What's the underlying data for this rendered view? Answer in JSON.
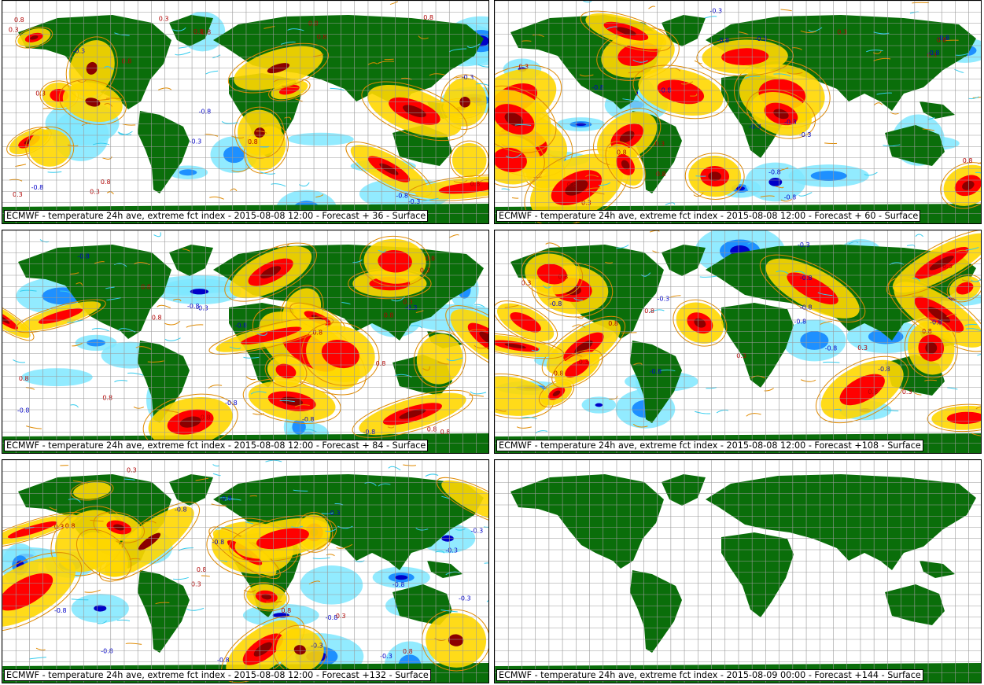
{
  "panels": [
    {
      "caption": "ECMWF - temperature 24h ave, extreme fct index - 2015-08-08 12:00 - Forecast + 36 - Surface",
      "has_field": true
    },
    {
      "caption": "ECMWF - temperature 24h ave, extreme fct index - 2015-08-08 12:00 - Forecast + 60 - Surface",
      "has_field": true
    },
    {
      "caption": "ECMWF - temperature 24h ave, extreme fct index - 2015-08-08 12:00 - Forecast + 84 - Surface",
      "has_field": true
    },
    {
      "caption": "ECMWF - temperature 24h ave, extreme fct index - 2015-08-08 12:00 - Forecast +108 - Surface",
      "has_field": true
    },
    {
      "caption": "ECMWF - temperature 24h ave, extreme fct index - 2015-08-08 12:00 - Forecast +132 - Surface",
      "has_field": true
    },
    {
      "caption": "ECMWF - temperature 24h ave, extreme fct index - 2015-08-09 00:00 - Forecast +144 - Surface",
      "has_field": false
    }
  ],
  "contour_labels": [
    "0.3",
    "0.8",
    "-0.3",
    "-0.8"
  ],
  "colors": {
    "land": "#0a6e0a",
    "grid": "#9a9a9a",
    "warm_weak": "#ffd700",
    "warm_mid": "#ff0000",
    "warm_strong": "#8b0000",
    "warm_contour": "#e08a00",
    "cold_weak": "#7fe8ff",
    "cold_mid": "#1e90ff",
    "cold_strong": "#0000c8",
    "cold_contour": "#33ccee"
  }
}
